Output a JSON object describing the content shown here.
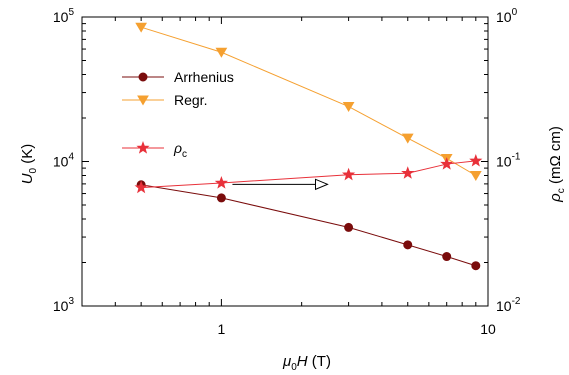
{
  "chart_data": {
    "type": "line",
    "xlabel": "μ0H (T)",
    "ylabel_left": "U0 (K)",
    "ylabel_right": "ρc (mΩ cm)",
    "xscale": "log",
    "yscale_left": "log",
    "yscale_right": "log",
    "xlim": [
      0.3,
      10
    ],
    "ylim_left": [
      1000,
      100000
    ],
    "ylim_right": [
      0.01,
      1
    ],
    "x_ticks": [
      "1",
      "10"
    ],
    "y_left_ticks": [
      "10^3",
      "10^4",
      "10^5"
    ],
    "y_right_ticks": [
      "10^-2",
      "10^-1",
      "10^0"
    ],
    "legend_position": "upper-left",
    "series": [
      {
        "name": "Arrhenius",
        "axis": "left",
        "marker": "circle",
        "color": "#7a0c0c",
        "x": [
          0.5,
          1,
          3,
          5,
          7,
          9
        ],
        "y": [
          6900,
          5600,
          3500,
          2650,
          2200,
          1900
        ]
      },
      {
        "name": "Regr.",
        "axis": "left",
        "marker": "triangle-down",
        "color": "#f5a030",
        "x": [
          0.5,
          1,
          3,
          5,
          7,
          9
        ],
        "y": [
          85000,
          57000,
          24000,
          14500,
          10500,
          8000
        ]
      },
      {
        "name": "ρc",
        "axis": "right",
        "marker": "star",
        "color": "#e8313a",
        "x": [
          0.5,
          1,
          3,
          5,
          7,
          9
        ],
        "y": [
          0.066,
          0.071,
          0.081,
          0.083,
          0.096,
          0.101
        ]
      }
    ],
    "annotations": [
      {
        "type": "arrow",
        "direction": "right",
        "meaning": "ρc series uses right axis"
      }
    ]
  }
}
